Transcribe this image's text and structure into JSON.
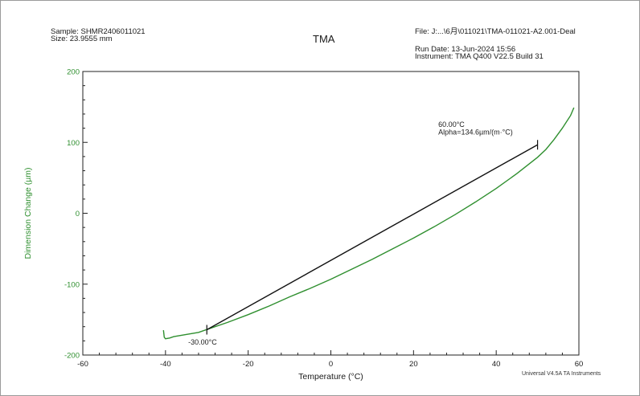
{
  "header": {
    "sample_line": "Sample: SHMR2406011021",
    "size_line": "Size:  23.9555 mm",
    "file_line": "File: J:...\\6月\\011021\\TMA-011021-A2.001-Deal",
    "run_date_line": "Run Date: 13-Jun-2024 15:56",
    "instrument_line": "Instrument: TMA Q400 V22.5 Build 31"
  },
  "footer_text": "Universal V4.5A TA Instruments",
  "chart_data": {
    "type": "line",
    "title": "TMA",
    "xlabel": "Temperature (°C)",
    "ylabel": "Dimension Change (µm)",
    "xlim": [
      -60,
      60
    ],
    "ylim": [
      -200,
      200
    ],
    "x_ticks": [
      -60,
      -40,
      -20,
      0,
      20,
      40,
      60
    ],
    "y_ticks": [
      -200,
      -100,
      0,
      100,
      200
    ],
    "grid": false,
    "series": [
      {
        "color": "#2f8f2f",
        "points": [
          [
            -40.5,
            -165
          ],
          [
            -40.3,
            -175
          ],
          [
            -40.0,
            -177
          ],
          [
            -39.0,
            -176
          ],
          [
            -38.0,
            -174
          ],
          [
            -35.0,
            -171
          ],
          [
            -32.0,
            -168
          ],
          [
            -30.0,
            -164
          ],
          [
            -25.0,
            -154
          ],
          [
            -20.0,
            -143
          ],
          [
            -15.0,
            -131
          ],
          [
            -10.0,
            -118
          ],
          [
            -5.0,
            -106
          ],
          [
            0.0,
            -93
          ],
          [
            5.0,
            -79
          ],
          [
            10.0,
            -65
          ],
          [
            15.0,
            -50
          ],
          [
            20.0,
            -35
          ],
          [
            25.0,
            -19
          ],
          [
            30.0,
            -2
          ],
          [
            35.0,
            16
          ],
          [
            40.0,
            35
          ],
          [
            45.0,
            56
          ],
          [
            50.0,
            79
          ],
          [
            52.0,
            90
          ],
          [
            54.0,
            104
          ],
          [
            56.0,
            120
          ],
          [
            58.0,
            138
          ],
          [
            58.8,
            149
          ]
        ]
      }
    ],
    "fit_line": {
      "color": "#111111",
      "start": [
        -30.0,
        -164.3
      ],
      "end": [
        50.0,
        96.6
      ]
    },
    "annotations": [
      {
        "text": "60.00°C",
        "x": 26.0,
        "y": 122
      },
      {
        "text": "Alpha=134.6µm/(m·°C)",
        "x": 26.0,
        "y": 111
      },
      {
        "text": "-30.00°C",
        "x": -34.5,
        "y": -185
      }
    ],
    "colors": {
      "axis_label": "#2f8f2f",
      "axis_tick_label": "#2f8f2f"
    }
  }
}
